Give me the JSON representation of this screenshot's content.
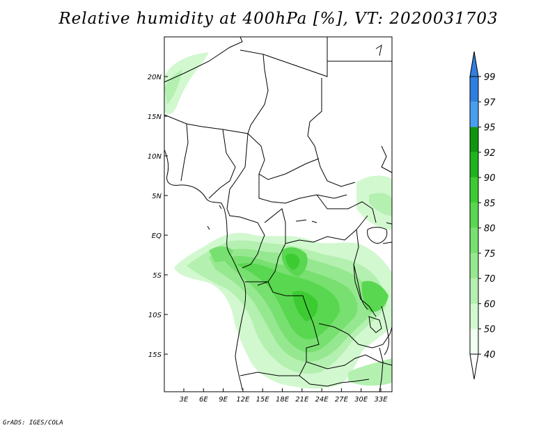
{
  "title": "Relative humidity at 400hPa [%], VT: 2020031703",
  "credit": "GrADS: IGES/COLA",
  "map": {
    "lon_range": [
      0,
      35
    ],
    "lat_range": [
      -20,
      25
    ],
    "lat_ticks": [
      "20N",
      "15N",
      "10N",
      "5N",
      "EQ",
      "5S",
      "10S",
      "15S"
    ],
    "lon_ticks": [
      "3E",
      "6E",
      "9E",
      "12E",
      "15E",
      "18E",
      "21E",
      "24E",
      "27E",
      "30E",
      "33E"
    ],
    "fill_colors": [
      "#f0fff0",
      "#d2f8cf",
      "#b4f0b0",
      "#96e890",
      "#78e070",
      "#5ad750",
      "#3ccc32",
      "#1eb41e",
      "#0f960f"
    ]
  },
  "colorbar": {
    "levels": [
      "40",
      "50",
      "60",
      "70",
      "75",
      "80",
      "85",
      "90",
      "92",
      "95",
      "97",
      "99"
    ],
    "colors": [
      "#ffffff",
      "#f0fff0",
      "#d2f8cf",
      "#b4f0b0",
      "#96e890",
      "#78e070",
      "#5ad750",
      "#3ccc32",
      "#1eb41e",
      "#0f960f",
      "#4a9ef0",
      "#2f7fe0",
      "#1f5fc8"
    ]
  }
}
